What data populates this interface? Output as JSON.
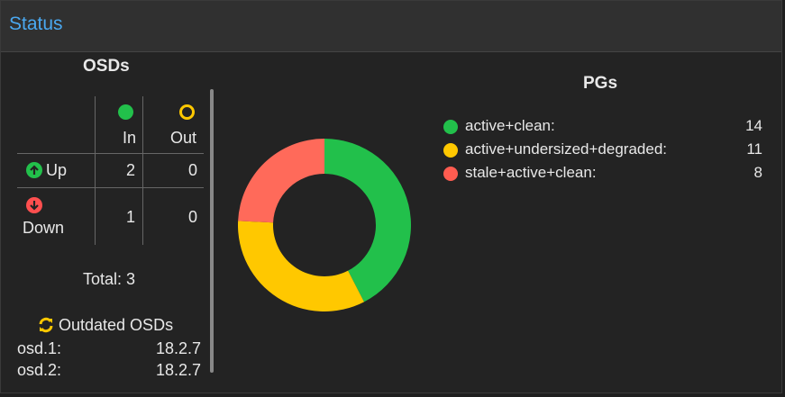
{
  "panel": {
    "title": "Status"
  },
  "osds": {
    "title": "OSDs",
    "col_in": "In",
    "col_out": "Out",
    "rows": [
      {
        "label": "Up",
        "in": "2",
        "out": "0"
      },
      {
        "label": "Down",
        "in": "1",
        "out": "0"
      }
    ],
    "total": "Total: 3",
    "outdated_title": "Outdated OSDs",
    "outdated": [
      {
        "name": "osd.1:",
        "version": "18.2.7"
      },
      {
        "name": "osd.2:",
        "version": "18.2.7"
      }
    ]
  },
  "pgs": {
    "title": "PGs",
    "items": [
      {
        "label": "active+clean:",
        "value": "14",
        "color": "#22c04b"
      },
      {
        "label": "active+undersized+degraded:",
        "value": "11",
        "color": "#ffc800"
      },
      {
        "label": "stale+active+clean:",
        "value": "8",
        "color": "#ff5c50"
      }
    ]
  },
  "chart_data": {
    "type": "pie",
    "donut": true,
    "categories": [
      "active+clean",
      "active+undersized+degraded",
      "stale+active+clean"
    ],
    "values": [
      14,
      11,
      8
    ],
    "colors": [
      "#22c04b",
      "#ffc800",
      "#ff6a5a"
    ]
  },
  "icons": {
    "in": "filled-circle",
    "out": "hollow-circle",
    "up": "arrow-up-circle",
    "down": "arrow-down-circle",
    "outdated": "refresh-icon"
  }
}
